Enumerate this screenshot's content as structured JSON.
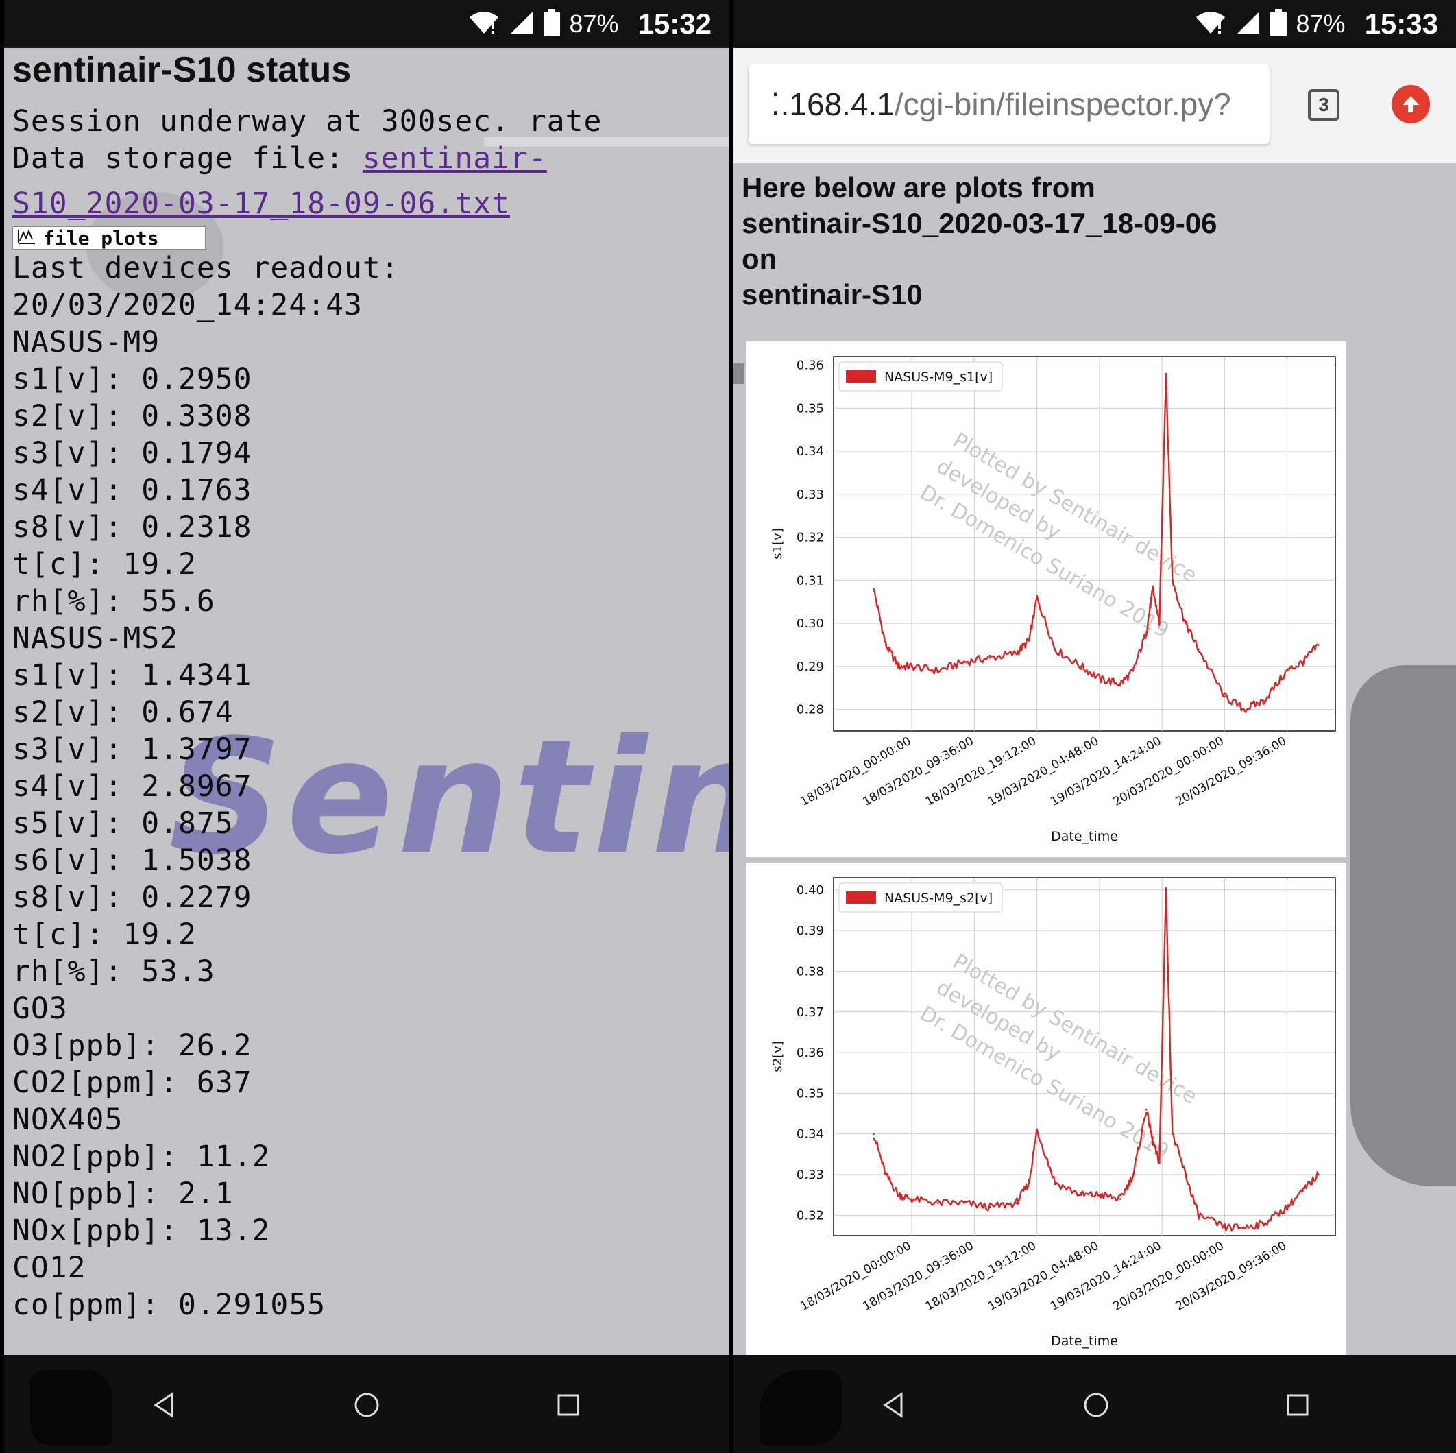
{
  "left": {
    "status": {
      "battery": "87%",
      "time": "15:32"
    },
    "title": "sentinair-S10 status",
    "session_line": "Session underway at 300sec. rate",
    "storage_label": "Data storage file: ",
    "storage_link_1": "sentinair-",
    "storage_link_2": "S10_2020-03-17_18-09-06.txt",
    "file_plots_button": "file plots",
    "readout_label": "Last devices readout:",
    "readout_time": "20/03/2020_14:24:43",
    "readout_lines": [
      "NASUS-M9",
      "s1[v]: 0.2950",
      "s2[v]: 0.3308",
      "s3[v]: 0.1794",
      "s4[v]: 0.1763",
      "s8[v]: 0.2318",
      "t[c]: 19.2",
      "rh[%]: 55.6",
      "NASUS-MS2",
      "s1[v]: 1.4341",
      "s2[v]: 0.674",
      "s3[v]: 1.3797",
      "s4[v]: 2.8967",
      "s5[v]: 0.875",
      "s6[v]: 1.5038",
      "s8[v]: 0.2279",
      "t[c]: 19.2",
      "rh[%]: 53.3",
      "GO3",
      "O3[ppb]: 26.2",
      "CO2[ppm]: 637",
      "NOX405",
      "NO2[ppb]: 11.2",
      "NO[ppb]: 2.1",
      "NOx[ppb]: 13.2",
      "CO12",
      "co[ppm]: 0.291055"
    ],
    "watermark": "SentinA"
  },
  "right": {
    "status": {
      "battery": "87%",
      "time": "15:33"
    },
    "url_host": "⁚.168.4.1",
    "url_path": "/cgi-bin/fileinspector.py?",
    "tab_count": "3",
    "heading_lines": [
      "Here below are plots from",
      "sentinair-S10_2020-03-17_18-09-06",
      "on",
      "sentinair-S10"
    ]
  },
  "chart_data": [
    {
      "type": "line",
      "series": [
        {
          "name": "NASUS-M9_s1[v]",
          "color": "#d62728",
          "x": [
            "17/03/2020 18:09",
            "17/03/2020 20:00",
            "17/03/2020 22:00",
            "18/03/2020 00:00",
            "18/03/2020 04:00",
            "18/03/2020 08:00",
            "18/03/2020 12:00",
            "18/03/2020 16:00",
            "18/03/2020 18:00",
            "18/03/2020 19:12",
            "18/03/2020 22:00",
            "19/03/2020 02:00",
            "19/03/2020 05:00",
            "19/03/2020 08:00",
            "19/03/2020 10:00",
            "19/03/2020 12:00",
            "19/03/2020 13:00",
            "19/03/2020 14:00",
            "19/03/2020 15:00",
            "19/03/2020 16:00",
            "19/03/2020 18:00",
            "19/03/2020 20:00",
            "20/03/2020 00:00",
            "20/03/2020 03:00",
            "20/03/2020 06:00",
            "20/03/2020 09:36",
            "20/03/2020 12:00",
            "20/03/2020 14:24"
          ],
          "y": [
            0.308,
            0.295,
            0.29,
            0.29,
            0.289,
            0.291,
            0.292,
            0.293,
            0.296,
            0.306,
            0.294,
            0.29,
            0.287,
            0.286,
            0.289,
            0.298,
            0.308,
            0.3,
            0.358,
            0.31,
            0.3,
            0.294,
            0.283,
            0.28,
            0.282,
            0.289,
            0.291,
            0.295
          ]
        }
      ],
      "xlabel": "Date_time",
      "ylabel": "s1[v]",
      "xticks": [
        "18/03/2020_00:00:00",
        "18/03/2020_09:36:00",
        "18/03/2020_19:12:00",
        "19/03/2020_04:48:00",
        "19/03/2020_14:24:00",
        "20/03/2020_00:00:00",
        "20/03/2020_09:36:00"
      ],
      "yticks": [
        "0.28",
        "0.29",
        "0.30",
        "0.31",
        "0.32",
        "0.33",
        "0.34",
        "0.35",
        "0.36"
      ],
      "ylim": [
        0.275,
        0.362
      ],
      "grid": true,
      "legend": "top-left",
      "annotation": [
        "Plotted by Sentinair device",
        "developed by",
        "Dr. Domenico Suriano 2019"
      ]
    },
    {
      "type": "line",
      "series": [
        {
          "name": "NASUS-M9_s2[v]",
          "color": "#d62728",
          "x": [
            "17/03/2020 18:09",
            "17/03/2020 20:00",
            "17/03/2020 22:00",
            "18/03/2020 00:00",
            "18/03/2020 04:00",
            "18/03/2020 08:00",
            "18/03/2020 12:00",
            "18/03/2020 16:00",
            "18/03/2020 18:00",
            "18/03/2020 19:12",
            "18/03/2020 22:00",
            "19/03/2020 02:00",
            "19/03/2020 05:00",
            "19/03/2020 08:00",
            "19/03/2020 10:00",
            "19/03/2020 12:00",
            "19/03/2020 13:00",
            "19/03/2020 14:00",
            "19/03/2020 15:00",
            "19/03/2020 16:00",
            "19/03/2020 18:00",
            "19/03/2020 20:00",
            "20/03/2020 00:00",
            "20/03/2020 03:00",
            "20/03/2020 06:00",
            "20/03/2020 09:36",
            "20/03/2020 12:00",
            "20/03/2020 14:24"
          ],
          "y": [
            0.34,
            0.33,
            0.325,
            0.324,
            0.323,
            0.323,
            0.322,
            0.323,
            0.328,
            0.341,
            0.328,
            0.325,
            0.325,
            0.324,
            0.33,
            0.346,
            0.338,
            0.333,
            0.4,
            0.34,
            0.33,
            0.32,
            0.317,
            0.317,
            0.318,
            0.322,
            0.326,
            0.33
          ]
        }
      ],
      "xlabel": "Date_time",
      "ylabel": "s2[v]",
      "xticks": [
        "18/03/2020_00:00:00",
        "18/03/2020_09:36:00",
        "18/03/2020_19:12:00",
        "19/03/2020_04:48:00",
        "19/03/2020_14:24:00",
        "20/03/2020_00:00:00",
        "20/03/2020_09:36:00"
      ],
      "yticks": [
        "0.32",
        "0.33",
        "0.34",
        "0.35",
        "0.36",
        "0.37",
        "0.38",
        "0.39",
        "0.40"
      ],
      "ylim": [
        0.315,
        0.403
      ],
      "grid": true,
      "legend": "top-left",
      "annotation": [
        "Plotted by Sentinair device",
        "developed by",
        "Dr. Domenico Suriano 2019"
      ]
    }
  ]
}
